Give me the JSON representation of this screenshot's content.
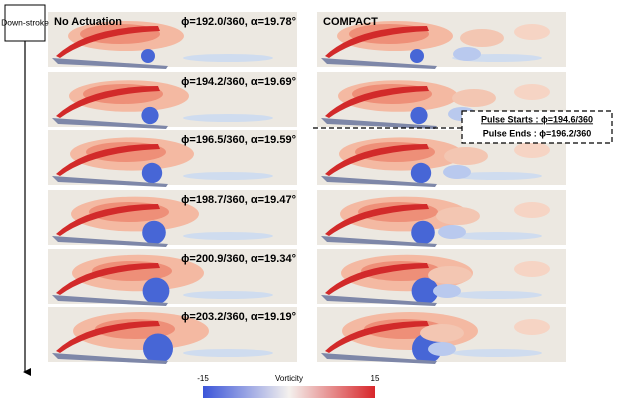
{
  "side_label": "Down-stroke",
  "columns": [
    "No Actuation",
    "COMPACT"
  ],
  "rows": [
    "ϕ=192.0/360, α=19.78°",
    "ϕ=194.2/360, α=19.69°",
    "ϕ=196.5/360, α=19.59°",
    "ϕ=198.7/360, α=19.47°",
    "ϕ=200.9/360, α=19.34°",
    "ϕ=203.2/360, α=19.19°"
  ],
  "annotation": {
    "pulse_starts": "Pulse Starts : ϕ=194.6/360",
    "pulse_ends": "Pulse Ends : ϕ=196.2/360"
  },
  "colorbar": {
    "label": "Vorticity",
    "min": -15,
    "max": 15
  }
}
